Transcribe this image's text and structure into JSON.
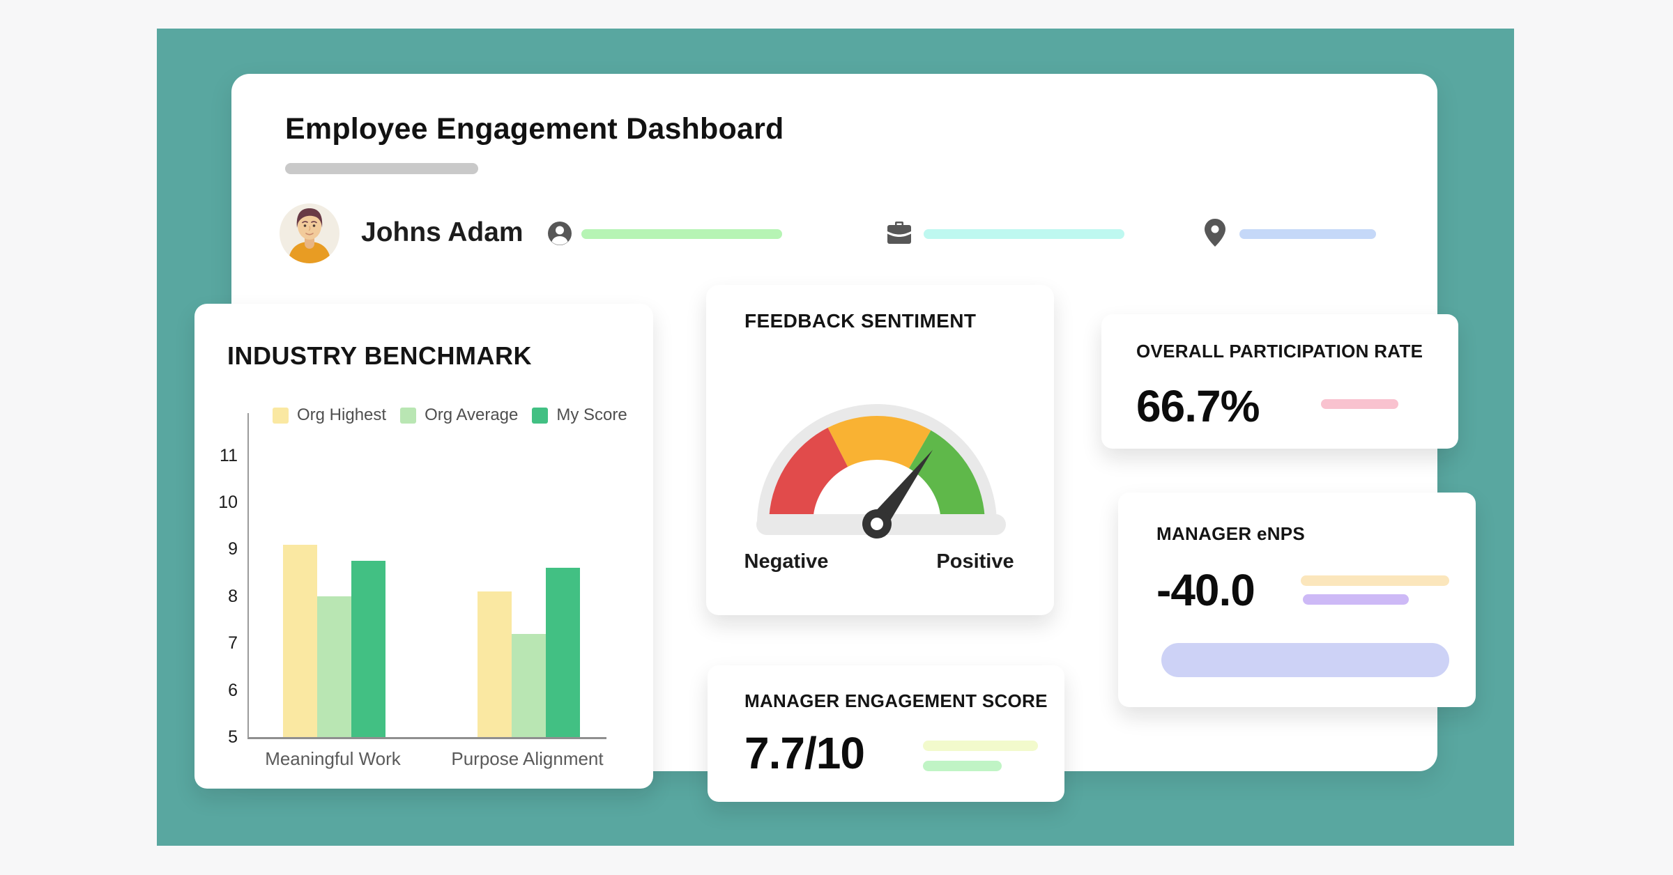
{
  "page": {
    "background": "#F7F7F8",
    "panel_color": "#59A7A0"
  },
  "header": {
    "title": "Employee Engagement Dashboard",
    "underline_color": "#C9C9C9",
    "user_name": "Johns Adam",
    "icon_color": "#575757",
    "field_bars": {
      "person_bar_color": "#B6F4B4",
      "briefcase_bar_color": "#BEF8F0",
      "location_bar_color": "#C5D8F8"
    }
  },
  "cards": {
    "benchmark": {
      "title": "INDUSTRY BENCHMARK"
    },
    "feedback": {
      "title": "FEEDBACK SENTIMENT",
      "gauge": {
        "left_label": "Negative",
        "right_label": "Positive",
        "needle_angle_deg": 37,
        "colors": {
          "ring": "#E9E9E9",
          "red": "#E14B4B",
          "orange": "#F9B233",
          "green": "#5FB84A",
          "needle": "#333333"
        }
      }
    },
    "participation": {
      "title": "OVERALL PARTICIPATION RATE",
      "value": "66.7%",
      "accent_color": "#F9C2CF"
    },
    "enps": {
      "title": "MANAGER eNPS",
      "value": "-40.0",
      "pill1_color": "#FBE6BC",
      "pill2_color": "#CDB9F6",
      "bar_color": "#CDD2F6"
    },
    "engagement": {
      "title": "MANAGER ENGAGEMENT SCORE",
      "value": "7.7/10",
      "pill1_color": "#F2FACC",
      "pill2_color": "#C0F4C5"
    }
  },
  "chart_data": {
    "type": "bar",
    "title": "INDUSTRY BENCHMARK",
    "categories": [
      "Meaningful Work",
      "Purpose Alignment"
    ],
    "series": [
      {
        "name": "Org Highest",
        "color": "#FAE8A2",
        "values": [
          9.1,
          8.1
        ]
      },
      {
        "name": "Org Average",
        "color": "#B9E6B3",
        "values": [
          8.0,
          7.2
        ]
      },
      {
        "name": "My Score",
        "color": "#42C083",
        "values": [
          8.75,
          8.6
        ]
      }
    ],
    "xlabel": "",
    "ylabel": "",
    "ylim": [
      5,
      11.9
    ],
    "yticks": [
      5,
      6,
      7,
      8,
      9,
      10,
      11
    ],
    "grid": false,
    "legend_position": "top"
  }
}
